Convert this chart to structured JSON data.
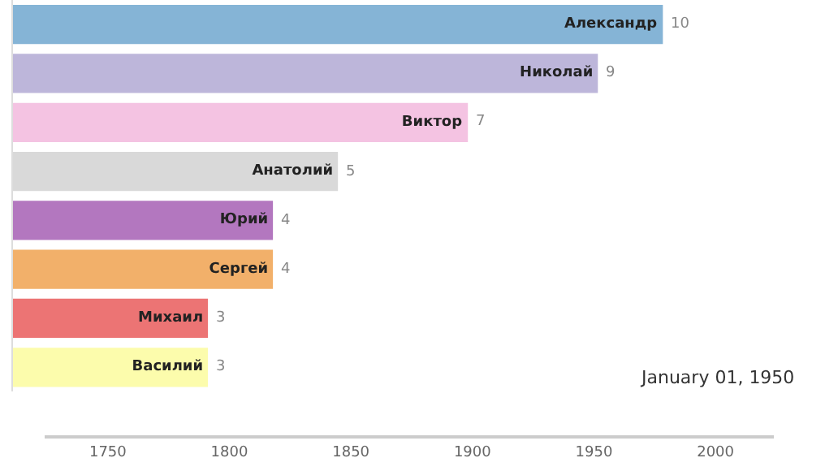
{
  "chart_data": {
    "type": "bar",
    "orientation": "horizontal",
    "data_labels": true,
    "categories": [
      "Александр",
      "Николай",
      "Виктор",
      "Анатолий",
      "Юрий",
      "Сергей",
      "Михаил",
      "Василий"
    ],
    "values": [
      10,
      9,
      7,
      5,
      4,
      4,
      3,
      3
    ],
    "colors": [
      "#85b4d6",
      "#bdb6da",
      "#f4c3e2",
      "#d9d9d9",
      "#b377bf",
      "#f2b06a",
      "#ec7474",
      "#fcfcac"
    ],
    "x2lim": [
      1724,
      2024
    ],
    "x2ticks": [
      1750,
      1800,
      1850,
      1900,
      1950,
      2000
    ],
    "annotations": [
      "January 01, 1950"
    ]
  }
}
